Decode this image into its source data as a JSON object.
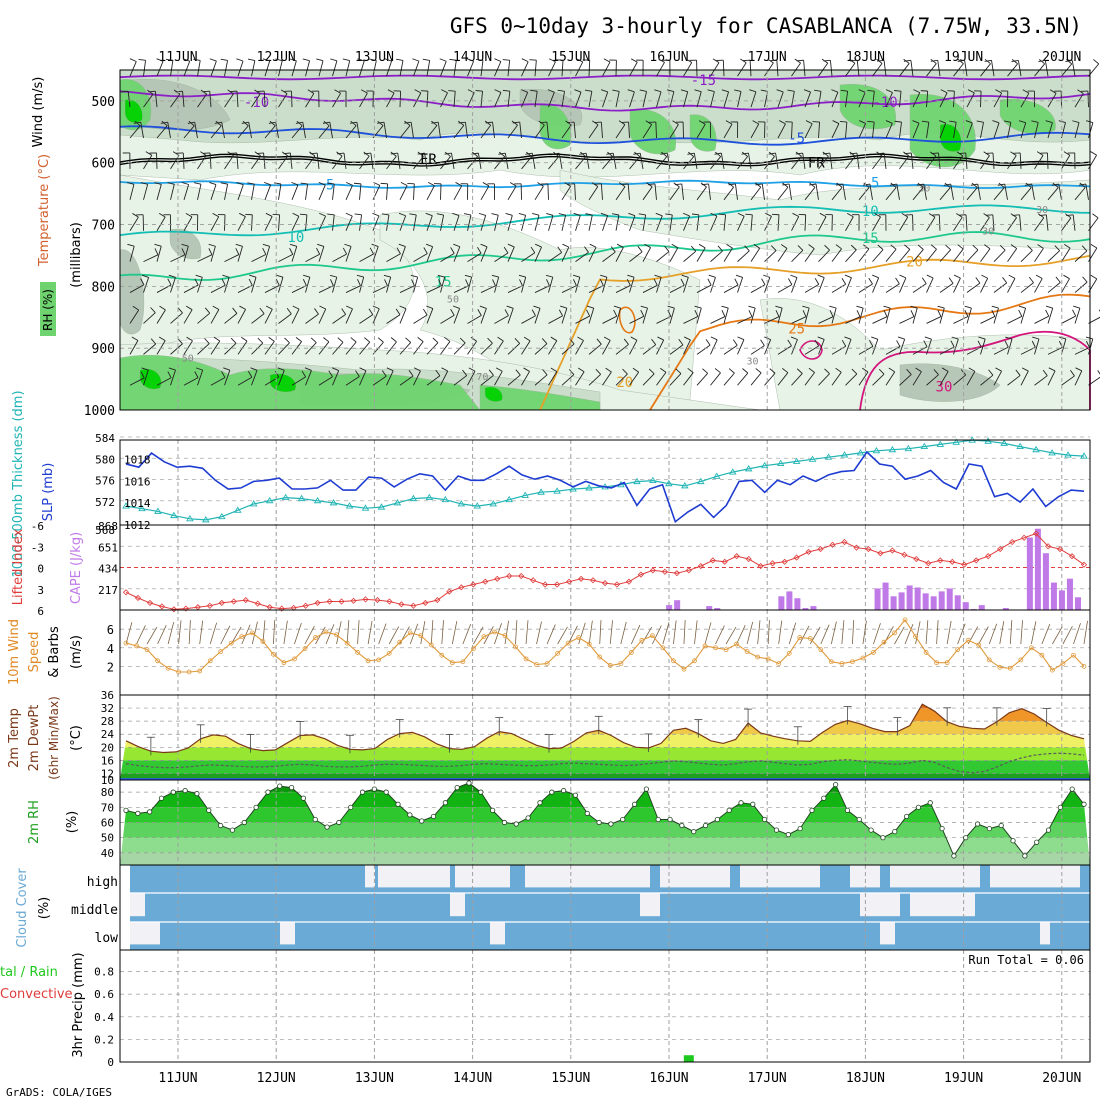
{
  "title": "GFS 0~10day 3-hourly for CASABLANCA (7.75W, 33.5N)",
  "credit": "GrADS: COLA/IGES",
  "dates": [
    "11JUN",
    "12JUN",
    "13JUN",
    "14JUN",
    "15JUN",
    "16JUN",
    "17JUN",
    "18JUN",
    "19JUN",
    "20JUN"
  ],
  "colors": {
    "rh_light": "#e6f2e6",
    "rh_mid": "#c9dcc9",
    "rh_gray": "#b4c4b4",
    "rh_green": "#6fd46f",
    "rh_bright": "#00d200",
    "temp_purple": "#8c1ec8",
    "temp_blue": "#1e50dc",
    "temp_sky": "#1ea0e6",
    "temp_teal": "#14beb4",
    "temp_green": "#1ec88c",
    "temp_orange": "#e6a028",
    "temp_darkorange": "#e67814",
    "temp_magenta": "#d2147c",
    "temp_black": "#000000",
    "slp": "#1e3cd2",
    "thickness": "#20b4b4",
    "lifted": "#e03c3c",
    "cape": "#c07ae8",
    "wind": "#e09a3c",
    "barb": "#7a6040",
    "cloud": "#6aaad6",
    "cloud_bg": "#f2f2f6",
    "precip": "#1ec81e"
  },
  "panels": {
    "upper": {
      "ylabel_wind": "Wind (m/s)",
      "ylabel_temp": "Temperature (°C)",
      "ylabel_rh": "RH (%)",
      "ylabel_mb": "(millibars)",
      "yticks": [
        "500",
        "600",
        "700",
        "800",
        "900",
        "1000"
      ],
      "temp_labels": [
        {
          "text": "-15",
          "day": 5.35,
          "p": 466,
          "c": "temp_purple"
        },
        {
          "text": "-10",
          "day": 0.8,
          "p": 502,
          "c": "temp_purple"
        },
        {
          "text": "-10",
          "day": 7.2,
          "p": 502,
          "c": "temp_purple"
        },
        {
          "text": "-5",
          "day": 6.3,
          "p": 560,
          "c": "temp_blue"
        },
        {
          "text": "FR",
          "day": 2.55,
          "p": 594,
          "c": "temp_black"
        },
        {
          "text": "FR",
          "day": 6.5,
          "p": 600,
          "c": "temp_black"
        },
        {
          "text": "5",
          "day": 1.55,
          "p": 635,
          "c": "temp_sky"
        },
        {
          "text": "5",
          "day": 7.1,
          "p": 632,
          "c": "temp_sky"
        },
        {
          "text": "10",
          "day": 7.05,
          "p": 678,
          "c": "temp_teal"
        },
        {
          "text": "10",
          "day": 1.2,
          "p": 720,
          "c": "temp_teal"
        },
        {
          "text": "15",
          "day": 7.05,
          "p": 722,
          "c": "temp_green"
        },
        {
          "text": "15",
          "day": 2.7,
          "p": 792,
          "c": "temp_green"
        },
        {
          "text": "20",
          "day": 7.5,
          "p": 760,
          "c": "temp_orange"
        },
        {
          "text": "25",
          "day": 6.3,
          "p": 868,
          "c": "temp_darkorange"
        },
        {
          "text": "20",
          "day": 4.55,
          "p": 955,
          "c": "temp_orange"
        },
        {
          "text": "30",
          "day": 7.8,
          "p": 962,
          "c": "temp_magenta"
        }
      ],
      "rh_labels": [
        {
          "text": "30",
          "day": 7.6,
          "p": 640
        },
        {
          "text": "30",
          "day": 8.25,
          "p": 710
        },
        {
          "text": "30",
          "day": 8.8,
          "p": 675
        },
        {
          "text": "50",
          "day": 2.8,
          "p": 820
        },
        {
          "text": "30",
          "day": 5.85,
          "p": 920
        },
        {
          "text": "70",
          "day": 3.1,
          "p": 945
        },
        {
          "text": "50",
          "day": 0.1,
          "p": 915
        }
      ]
    },
    "slp": {
      "ylabel_thick": "1000-500mb Thickness (dm)",
      "ylabel_slp": "SLP (mb)",
      "left_ticks": [
        "584",
        "580",
        "576",
        "572"
      ],
      "right_ticks": [
        "1018",
        "1016",
        "1014",
        "1012"
      ],
      "corner_label": "568"
    },
    "cape": {
      "ylabel_li": "Lifted Index",
      "ylabel_cape": "CAPE (J/kg)",
      "left_ticks": [
        "-6",
        "-3",
        "0",
        "3",
        "6"
      ],
      "right_ticks": [
        "868",
        "651",
        "434",
        "217"
      ]
    },
    "wind10": {
      "ylabel_a": "10m Wind",
      "ylabel_b": "Speed",
      "ylabel_c": "& Barbs",
      "ylabel_unit": "(m/s)",
      "ticks": [
        "6",
        "4",
        "2"
      ]
    },
    "temp2m": {
      "ylabel_a": "2m Temp",
      "ylabel_b": "2m DewPt",
      "ylabel_c": "(6hr Min/Max)",
      "ylabel_unit": "(°C)",
      "ticks": [
        "36",
        "32",
        "28",
        "24",
        "20",
        "16",
        "12",
        "10"
      ]
    },
    "rh2m": {
      "ylabel_a": "2m RH",
      "ylabel_unit": "(%)",
      "ticks": [
        "80",
        "70",
        "60",
        "50",
        "40"
      ]
    },
    "cloud": {
      "ylabel_a": "Cloud Cover",
      "ylabel_unit": "(%)",
      "levels": [
        "high",
        "middle",
        "low"
      ]
    },
    "precip": {
      "ylabel_a": "tal / Rain",
      "ylabel_b": "Convective",
      "ylabel_c": "3hr Precip (mm)",
      "ticks": [
        "0.8",
        "0.6",
        "0.4",
        "0.2",
        "0"
      ],
      "run_total": "Run Total = 0.06"
    }
  },
  "chart_data": {
    "type": "line",
    "title": "GFS 0~10day 3-hourly for CASABLANCA (7.75W, 33.5N)",
    "x_axis": {
      "label": "",
      "ticks": [
        "11JUN",
        "12JUN",
        "13JUN",
        "14JUN",
        "15JUN",
        "16JUN",
        "17JUN",
        "18JUN",
        "19JUN",
        "20JUN"
      ],
      "step": "3-hourly"
    },
    "wind10_speed_ms": [
      4.5,
      4.2,
      3.8,
      2.6,
      1.8,
      1.4,
      1.4,
      1.5,
      2.6,
      3.6,
      4.5,
      5.2,
      5.6,
      4.7,
      3.3,
      2.4,
      2.8,
      3.9,
      5.1,
      5.7,
      5.4,
      4.5,
      3.5,
      2.6,
      2.7,
      3.4,
      4.6,
      5.6,
      5.3,
      4.3,
      3.2,
      2.4,
      2.5,
      3.9,
      5.2,
      5.7,
      5.3,
      4.1,
      2.8,
      2.2,
      2.3,
      3.4,
      4.5,
      5.1,
      4.4,
      3.0,
      2.1,
      2.3,
      3.5,
      4.8,
      5.3,
      4.0,
      2.6,
      1.7,
      2.6,
      4.2,
      4.0,
      3.8,
      4.4,
      3.6,
      3.0,
      2.8,
      2.3,
      3.4,
      5.1,
      5.0,
      3.8,
      2.5,
      2.3,
      2.5,
      2.9,
      3.5,
      4.6,
      5.6,
      7.0,
      5.2,
      3.5,
      2.4,
      2.4,
      3.8,
      4.8,
      4.3,
      2.7,
      1.9,
      1.8,
      2.7,
      4.0,
      3.2,
      1.6,
      2.3,
      3.2,
      2.0
    ],
    "temp2m_C": [
      22.0,
      20.2,
      18.8,
      18.4,
      18.6,
      19.8,
      22.6,
      23.8,
      23.4,
      21.2,
      19.6,
      19.0,
      19.2,
      21.4,
      23.6,
      23.8,
      22.6,
      20.6,
      19.4,
      19.2,
      19.6,
      22.4,
      24.2,
      24.6,
      23.2,
      21.0,
      19.6,
      19.4,
      20.2,
      22.8,
      24.8,
      24.2,
      22.4,
      20.6,
      19.6,
      19.8,
      21.8,
      24.4,
      25.2,
      23.6,
      21.4,
      20.0,
      19.8,
      21.2,
      25.2,
      25.8,
      24.2,
      22.0,
      21.2,
      22.4,
      27.4,
      24.4,
      23.4,
      22.6,
      22.0,
      21.8,
      24.6,
      27.0,
      28.2,
      27.2,
      25.8,
      24.8,
      24.8,
      26.6,
      33.2,
      31.0,
      27.8,
      26.4,
      25.8,
      25.6,
      27.8,
      30.6,
      31.8,
      30.2,
      27.6,
      25.2,
      23.6,
      22.6
    ],
    "dewpt2m_C": [
      15.0,
      14.4,
      14.0,
      13.8,
      13.8,
      14.0,
      14.4,
      14.6,
      14.4,
      14.2,
      14.0,
      14.0,
      14.2,
      14.6,
      14.8,
      14.6,
      14.2,
      14.0,
      14.0,
      14.2,
      14.6,
      14.8,
      14.8,
      14.6,
      14.4,
      14.2,
      14.2,
      14.4,
      14.8,
      15.0,
      14.8,
      14.6,
      14.4,
      14.4,
      14.6,
      15.0,
      15.2,
      15.0,
      14.8,
      14.6,
      14.4,
      14.6,
      15.0,
      15.4,
      15.8,
      15.6,
      15.2,
      14.8,
      14.6,
      15.0,
      15.6,
      15.8,
      15.4,
      15.0,
      14.6,
      14.8,
      15.6,
      16.0,
      16.2,
      15.8,
      15.4,
      15.0,
      14.8,
      15.2,
      16.0,
      15.4,
      13.8,
      12.6,
      12.2,
      12.6,
      14.0,
      15.6,
      16.8,
      17.6,
      18.0,
      18.2,
      18.0,
      17.6
    ],
    "rh2m_pct": [
      68,
      66,
      67,
      76,
      80,
      81,
      79,
      68,
      58,
      55,
      60,
      70,
      80,
      84,
      83,
      76,
      62,
      57,
      60,
      70,
      80,
      82,
      80,
      72,
      65,
      61,
      64,
      73,
      83,
      86,
      80,
      68,
      60,
      59,
      63,
      73,
      80,
      81,
      78,
      66,
      60,
      59,
      62,
      72,
      82,
      62,
      62,
      58,
      54,
      58,
      62,
      68,
      73,
      72,
      62,
      55,
      52,
      56,
      68,
      76,
      85,
      68,
      62,
      55,
      50,
      54,
      64,
      70,
      73,
      56,
      38,
      50,
      59,
      56,
      58,
      48,
      38,
      47,
      55,
      70,
      82,
      72
    ],
    "slp_mb": [
      1017.6,
      1017.3,
      1018.6,
      1017.8,
      1017.3,
      1017.4,
      1017.2,
      1016.1,
      1015.3,
      1015.4,
      1016.0,
      1016.1,
      1016.3,
      1015.3,
      1015.3,
      1015.4,
      1016.1,
      1015.2,
      1015.2,
      1016.4,
      1016.3,
      1015.5,
      1016.2,
      1016.7,
      1016.5,
      1015.2,
      1016.5,
      1016.1,
      1016.1,
      1016.7,
      1017.4,
      1016.6,
      1016.2,
      1016.5,
      1016.1,
      1015.5,
      1016.0,
      1015.6,
      1015.4,
      1015.9,
      1013.8,
      1015.3,
      1015.7,
      1012.3,
      1013.2,
      1013.9,
      1012.7,
      1013.8,
      1016.0,
      1016.1,
      1015.0,
      1016.1,
      1015.7,
      1016.5,
      1016.0,
      1016.6,
      1016.9,
      1017.0,
      1018.7,
      1017.6,
      1017.4,
      1016.2,
      1016.5,
      1017.0,
      1015.9,
      1015.3,
      1017.6,
      1017.4,
      1014.6,
      1014.9,
      1014.1,
      1015.3,
      1013.7,
      1014.6,
      1015.2,
      1015.1
    ],
    "thickness_dm": [
      571,
      570.5,
      570,
      569.2,
      568.6,
      568.4,
      569,
      570.2,
      571.4,
      572,
      572.6,
      572.4,
      572,
      571.6,
      571,
      570.6,
      570.8,
      571.6,
      572.4,
      572.6,
      572.2,
      571.4,
      571,
      571.4,
      572.2,
      573,
      573.6,
      573.8,
      574.2,
      574.4,
      574.6,
      575,
      575.6,
      575.8,
      575.2,
      574.8,
      575.6,
      576.6,
      577.4,
      578,
      578.6,
      579,
      579.4,
      579.8,
      580.2,
      580.6,
      581,
      581.4,
      581.6,
      581.8,
      582.2,
      582.6,
      583,
      583.4,
      583.2,
      582.8,
      582.2,
      581.6,
      581,
      580.6,
      580.4
    ],
    "lifted_index": [
      3.5,
      4.3,
      5.0,
      5.5,
      5.9,
      5.8,
      5.6,
      5.4,
      5.0,
      4.8,
      4.6,
      5.1,
      5.6,
      5.8,
      5.7,
      5.4,
      5.0,
      4.8,
      4.8,
      4.7,
      4.5,
      4.6,
      4.8,
      5.2,
      5.4,
      5.0,
      4.6,
      3.4,
      2.8,
      2.4,
      2.0,
      1.6,
      1.2,
      1.2,
      1.8,
      2.4,
      2.4,
      2.0,
      1.6,
      1.8,
      2.2,
      2.4,
      2.0,
      1.0,
      0.4,
      0.6,
      0.8,
      0.4,
      -0.2,
      -1.0,
      -0.8,
      -1.6,
      -1.2,
      -0.2,
      -0.6,
      -0.8,
      -1.4,
      -2.2,
      -2.6,
      -3.2,
      -3.6,
      -2.8,
      -2.6,
      -2.0,
      -2.4,
      -1.8,
      -1.2,
      -0.6,
      -1.0,
      -0.8,
      -0.4,
      -1.0,
      -1.6,
      -2.6,
      -3.6,
      -4.2,
      -4.8,
      -3.0,
      -2.6,
      -1.6,
      -0.4
    ],
    "cape_Jkg": [
      0,
      0,
      0,
      0,
      0,
      0,
      0,
      0,
      0,
      0,
      0,
      0,
      0,
      0,
      0,
      0,
      0,
      0,
      0,
      0,
      0,
      0,
      0,
      0,
      0,
      0,
      0,
      0,
      0,
      0,
      0,
      0,
      0,
      0,
      0,
      0,
      0,
      0,
      0,
      0,
      0,
      0,
      0,
      0,
      0,
      0,
      0,
      0,
      0,
      0,
      0,
      0,
      0,
      0,
      0,
      0,
      0,
      0,
      0,
      0,
      0,
      0,
      0,
      0,
      0,
      0,
      0,
      0,
      50,
      100,
      0,
      0,
      0,
      40,
      20,
      0,
      0,
      0,
      0,
      0,
      0,
      0,
      140,
      190,
      120,
      20,
      40,
      0,
      0,
      0,
      0,
      0,
      0,
      0,
      220,
      280,
      140,
      180,
      250,
      230,
      170,
      140,
      190,
      220,
      150,
      80,
      10,
      50,
      0,
      0,
      20,
      0,
      0,
      740,
      830,
      580,
      280,
      200,
      320,
      130,
      0
    ],
    "precip_mm": {
      "step": 47,
      "value": 0.06
    },
    "run_total_mm": 0.06
  }
}
